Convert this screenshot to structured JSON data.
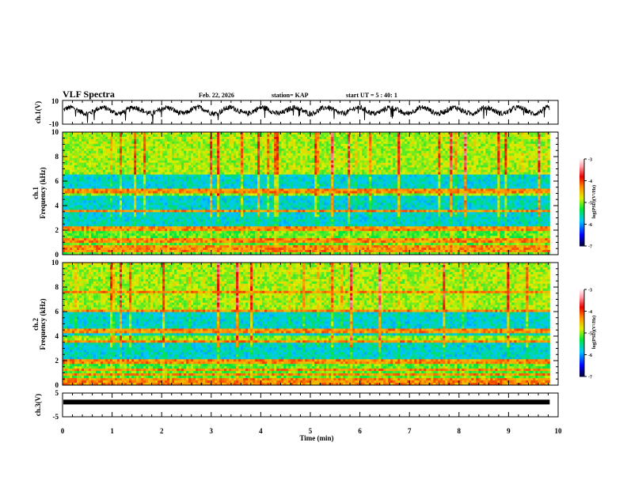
{
  "header": {
    "title": "VLF Spectra",
    "date": "Feb. 22, 2026",
    "station": "station= KAP",
    "start_ut": "start  UT =   5  : 40: 1"
  },
  "chart_data": [
    {
      "type": "line",
      "name": "ch1-waveform",
      "ylabel": "ch.1(V)",
      "ylim": [
        -10,
        10
      ],
      "yticks": [
        "10",
        "-10"
      ],
      "xlim": [
        0,
        10
      ],
      "data_end_min": 9.83,
      "mean_level": 1.5,
      "amplitude": 4.5,
      "color": "#000000"
    },
    {
      "type": "heatmap",
      "name": "ch1-spectrogram",
      "ylabel_channel": "ch.1",
      "ylabel": "Frequency  (kHz)",
      "ylim": [
        0,
        10
      ],
      "yticks": [
        "0",
        "2",
        "4",
        "6",
        "8",
        "10"
      ],
      "xlim": [
        0,
        10
      ],
      "data_end_min": 9.83,
      "quiet_bands_khz": [
        [
          2.4,
          3.4
        ],
        [
          3.7,
          4.9
        ],
        [
          5.4,
          6.6
        ]
      ],
      "lines_khz": [
        0.3,
        0.6,
        1.0,
        1.3,
        2.0,
        2.2,
        3.5,
        5.2
      ],
      "colorbar": {
        "label": "log(PSD)(V²/Hz)",
        "range": [
          -7,
          -3
        ],
        "ticks": [
          "-3",
          "-4",
          "-5",
          "-6",
          "-7"
        ]
      }
    },
    {
      "type": "heatmap",
      "name": "ch2-spectrogram",
      "ylabel_channel": "ch.2",
      "ylabel": "Frequency  (kHz)",
      "ylim": [
        0,
        10
      ],
      "yticks": [
        "0",
        "2",
        "4",
        "6",
        "8",
        "10"
      ],
      "xlim": [
        0,
        10
      ],
      "data_end_min": 9.83,
      "quiet_bands_khz": [
        [
          2.2,
          3.4
        ],
        [
          4.0,
          6.0
        ]
      ],
      "lines_khz": [
        0.2,
        0.5,
        0.8,
        1.2,
        1.8,
        2.0,
        3.6,
        4.4,
        6.0,
        7.6
      ],
      "colorbar": {
        "label": "log(PSD)(V²/Hz)",
        "range": [
          -7,
          -3
        ],
        "ticks": [
          "-3",
          "-4",
          "-5",
          "-6",
          "-7"
        ]
      }
    },
    {
      "type": "line",
      "name": "ch3-waveform",
      "ylabel": "ch.3(V)",
      "ylim": [
        -5,
        5
      ],
      "yticks": [
        "5",
        "-5"
      ],
      "xlim": [
        0,
        10
      ],
      "data_end_min": 9.83,
      "mean_level": 1.2,
      "amplitude": 0.3,
      "color": "#000000",
      "xlabel": "Time  (min)",
      "xticks": [
        "0",
        "1",
        "2",
        "3",
        "4",
        "5",
        "6",
        "7",
        "8",
        "9",
        "10"
      ]
    }
  ]
}
